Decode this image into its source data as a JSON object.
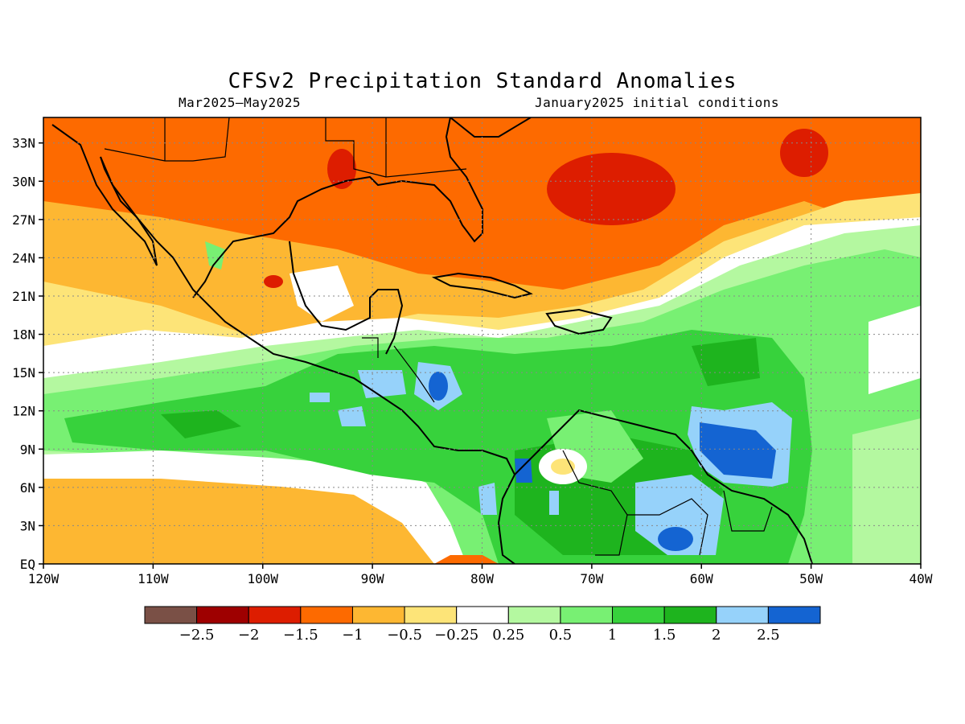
{
  "title": "CFSv2 Precipitation Standard Anomalies",
  "subtitle_left": "Mar2025–May2025",
  "subtitle_right": "January2025 initial conditions",
  "map": {
    "lon_range": [
      -120,
      -40
    ],
    "lat_range": [
      0,
      35
    ],
    "lon_ticks": [
      {
        "value": -120,
        "label": "120W"
      },
      {
        "value": -110,
        "label": "110W"
      },
      {
        "value": -100,
        "label": "100W"
      },
      {
        "value": -90,
        "label": "90W"
      },
      {
        "value": -80,
        "label": "80W"
      },
      {
        "value": -70,
        "label": "70W"
      },
      {
        "value": -60,
        "label": "60W"
      },
      {
        "value": -50,
        "label": "50W"
      },
      {
        "value": -40,
        "label": "40W"
      }
    ],
    "lat_ticks": [
      {
        "value": 0,
        "label": "EQ"
      },
      {
        "value": 3,
        "label": "3N"
      },
      {
        "value": 6,
        "label": "6N"
      },
      {
        "value": 9,
        "label": "9N"
      },
      {
        "value": 12,
        "label": "12N"
      },
      {
        "value": 15,
        "label": "15N"
      },
      {
        "value": 18,
        "label": "18N"
      },
      {
        "value": 21,
        "label": "21N"
      },
      {
        "value": 24,
        "label": "24N"
      },
      {
        "value": 27,
        "label": "27N"
      },
      {
        "value": 30,
        "label": "30N"
      },
      {
        "value": 33,
        "label": "33N"
      }
    ],
    "grid": true
  },
  "colorbar": {
    "colors": [
      "#7a5046",
      "#9e0000",
      "#dd1d00",
      "#fd6a00",
      "#fdb732",
      "#fde478",
      "#ffffff",
      "#b4f8a0",
      "#78f073",
      "#37d23c",
      "#1eb41e",
      "#96d2fa",
      "#1464d2"
    ],
    "labels": [
      "−2.5",
      "−2",
      "−1.5",
      "−1",
      "−0.5",
      "−0.25",
      "0.25",
      "0.5",
      "1",
      "1.5",
      "2",
      "2.5"
    ]
  }
}
